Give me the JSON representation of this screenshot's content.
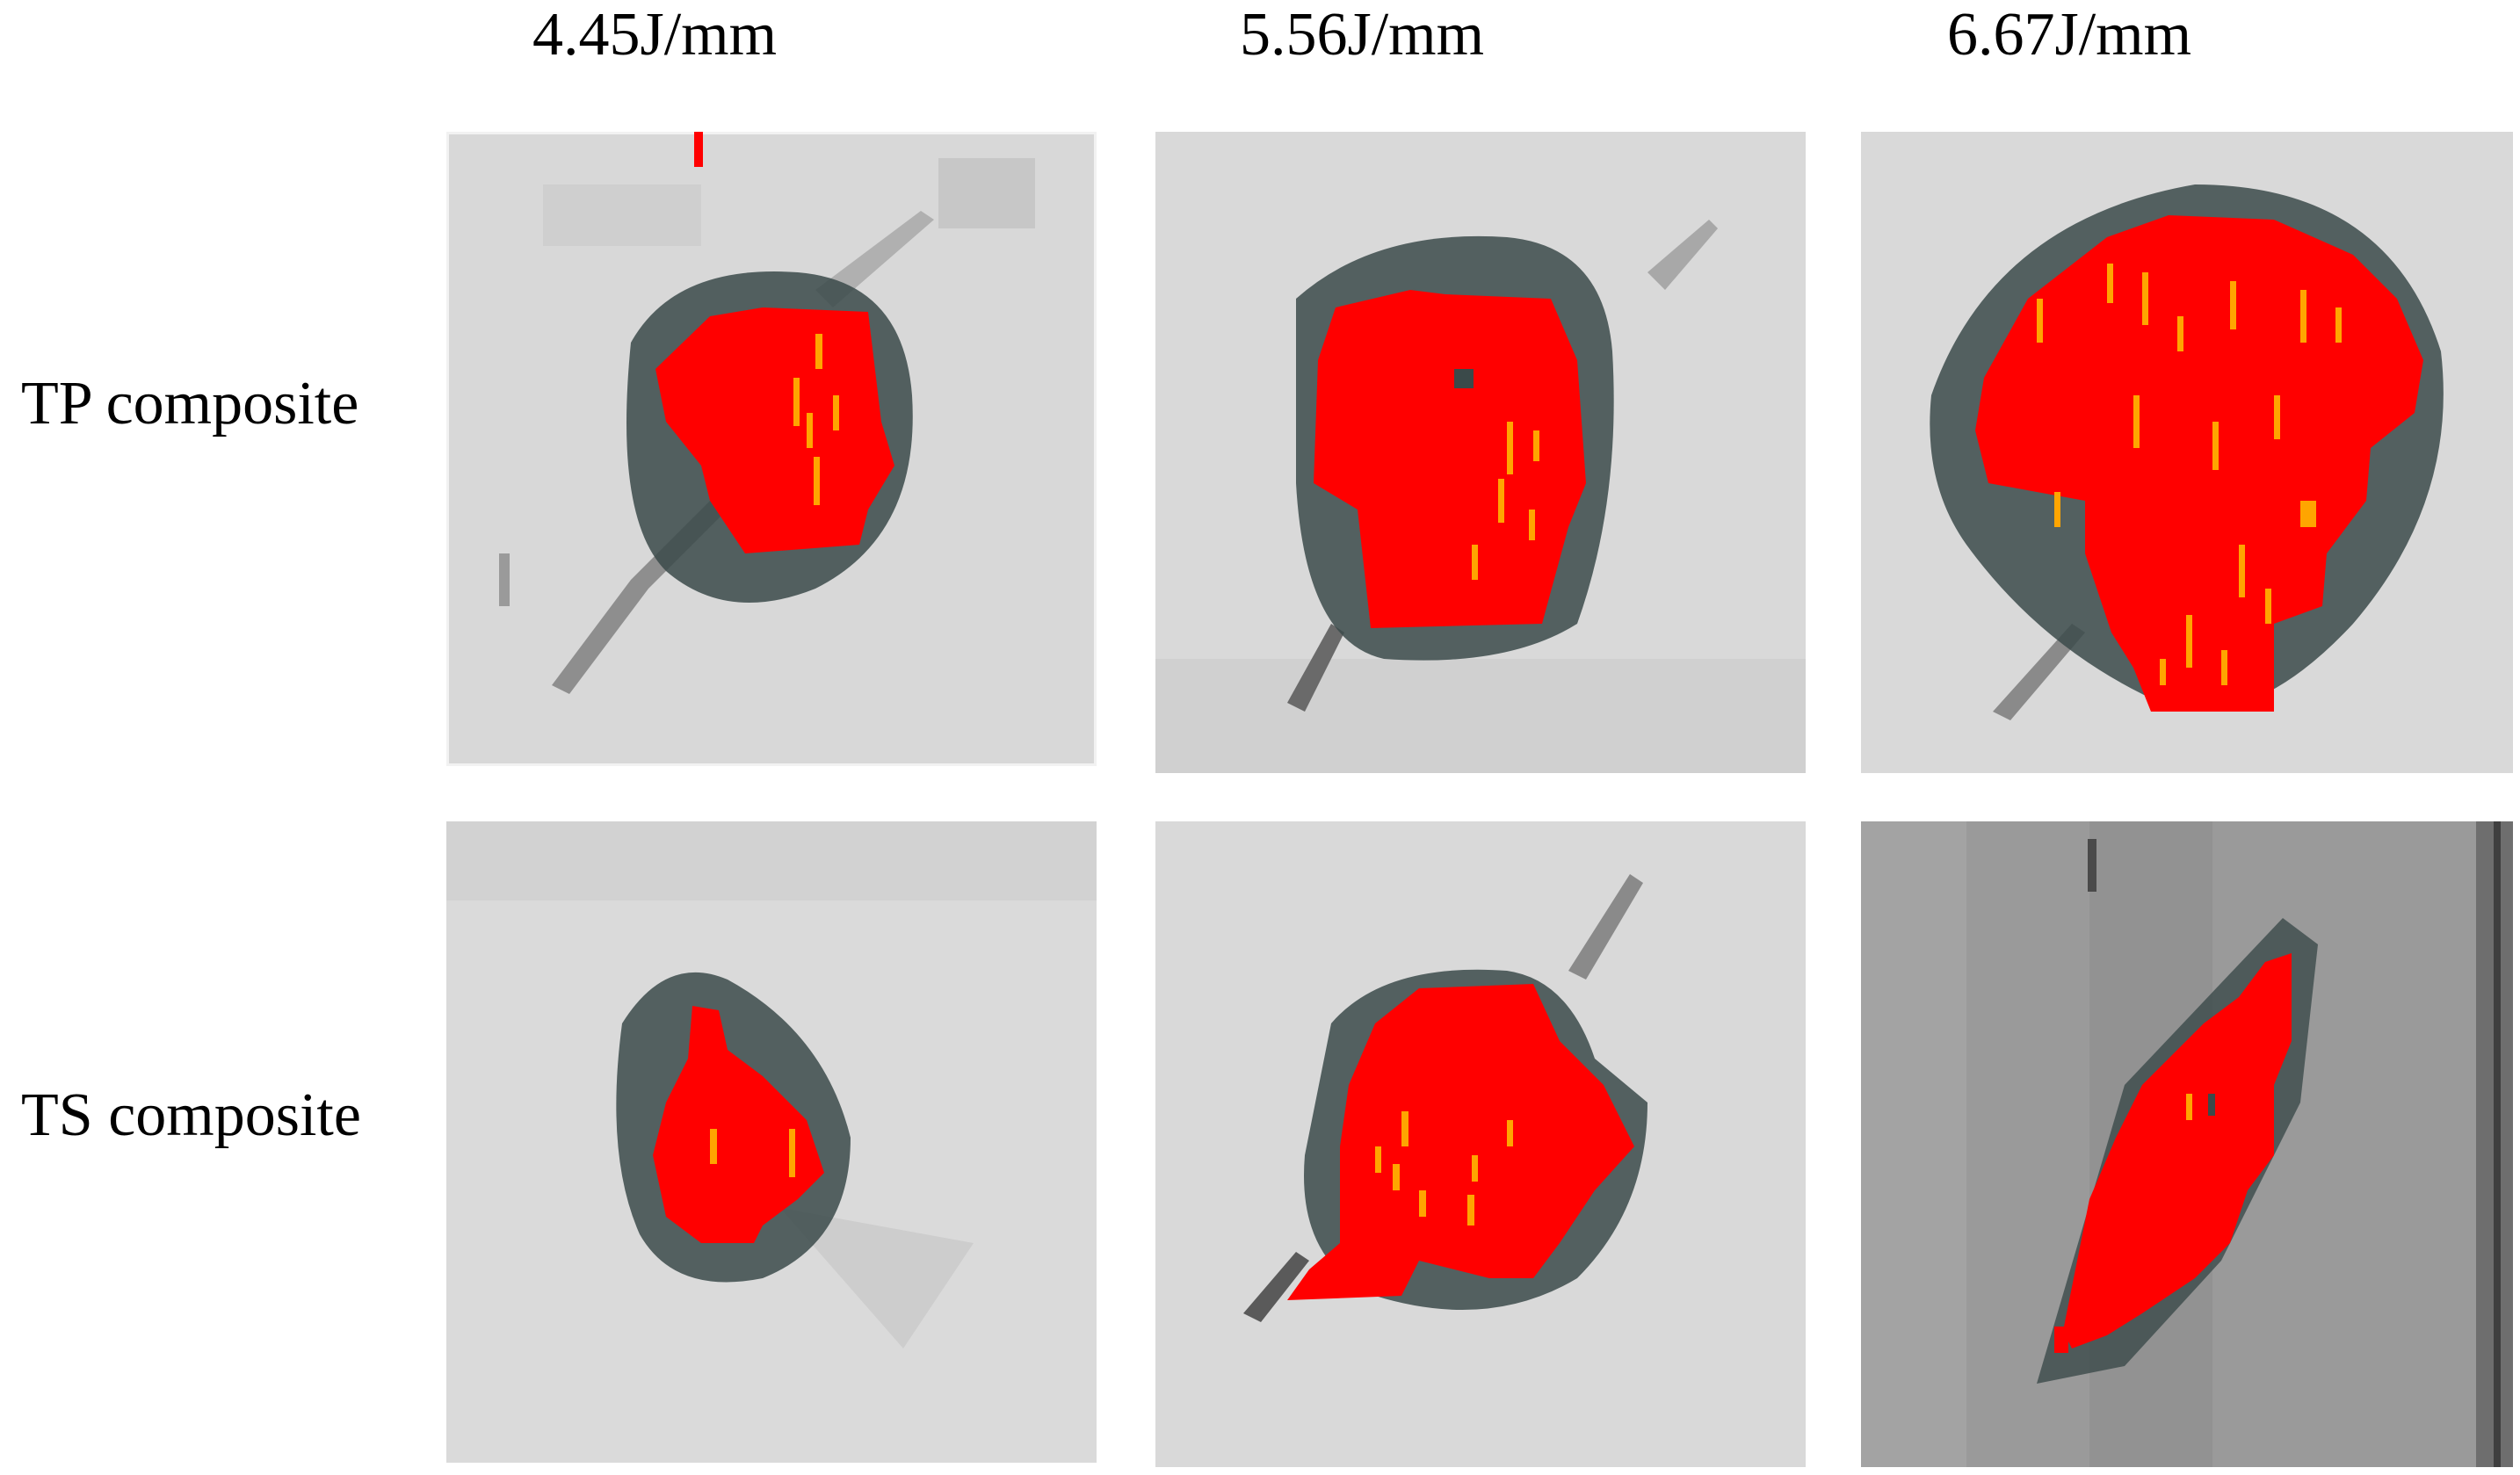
{
  "columns": [
    {
      "label": "4.45J/mm"
    },
    {
      "label": "5.56J/mm"
    },
    {
      "label": "6.67J/mm"
    }
  ],
  "rows": [
    {
      "label": "TP composite"
    },
    {
      "label": "TS composite"
    }
  ],
  "colors": {
    "background_light": "#d9d9d9",
    "background_dark": "#8f8f8f",
    "halo": "#3b4a4a",
    "damage_core": "#ff0000",
    "hotspot": "#ffa500"
  }
}
